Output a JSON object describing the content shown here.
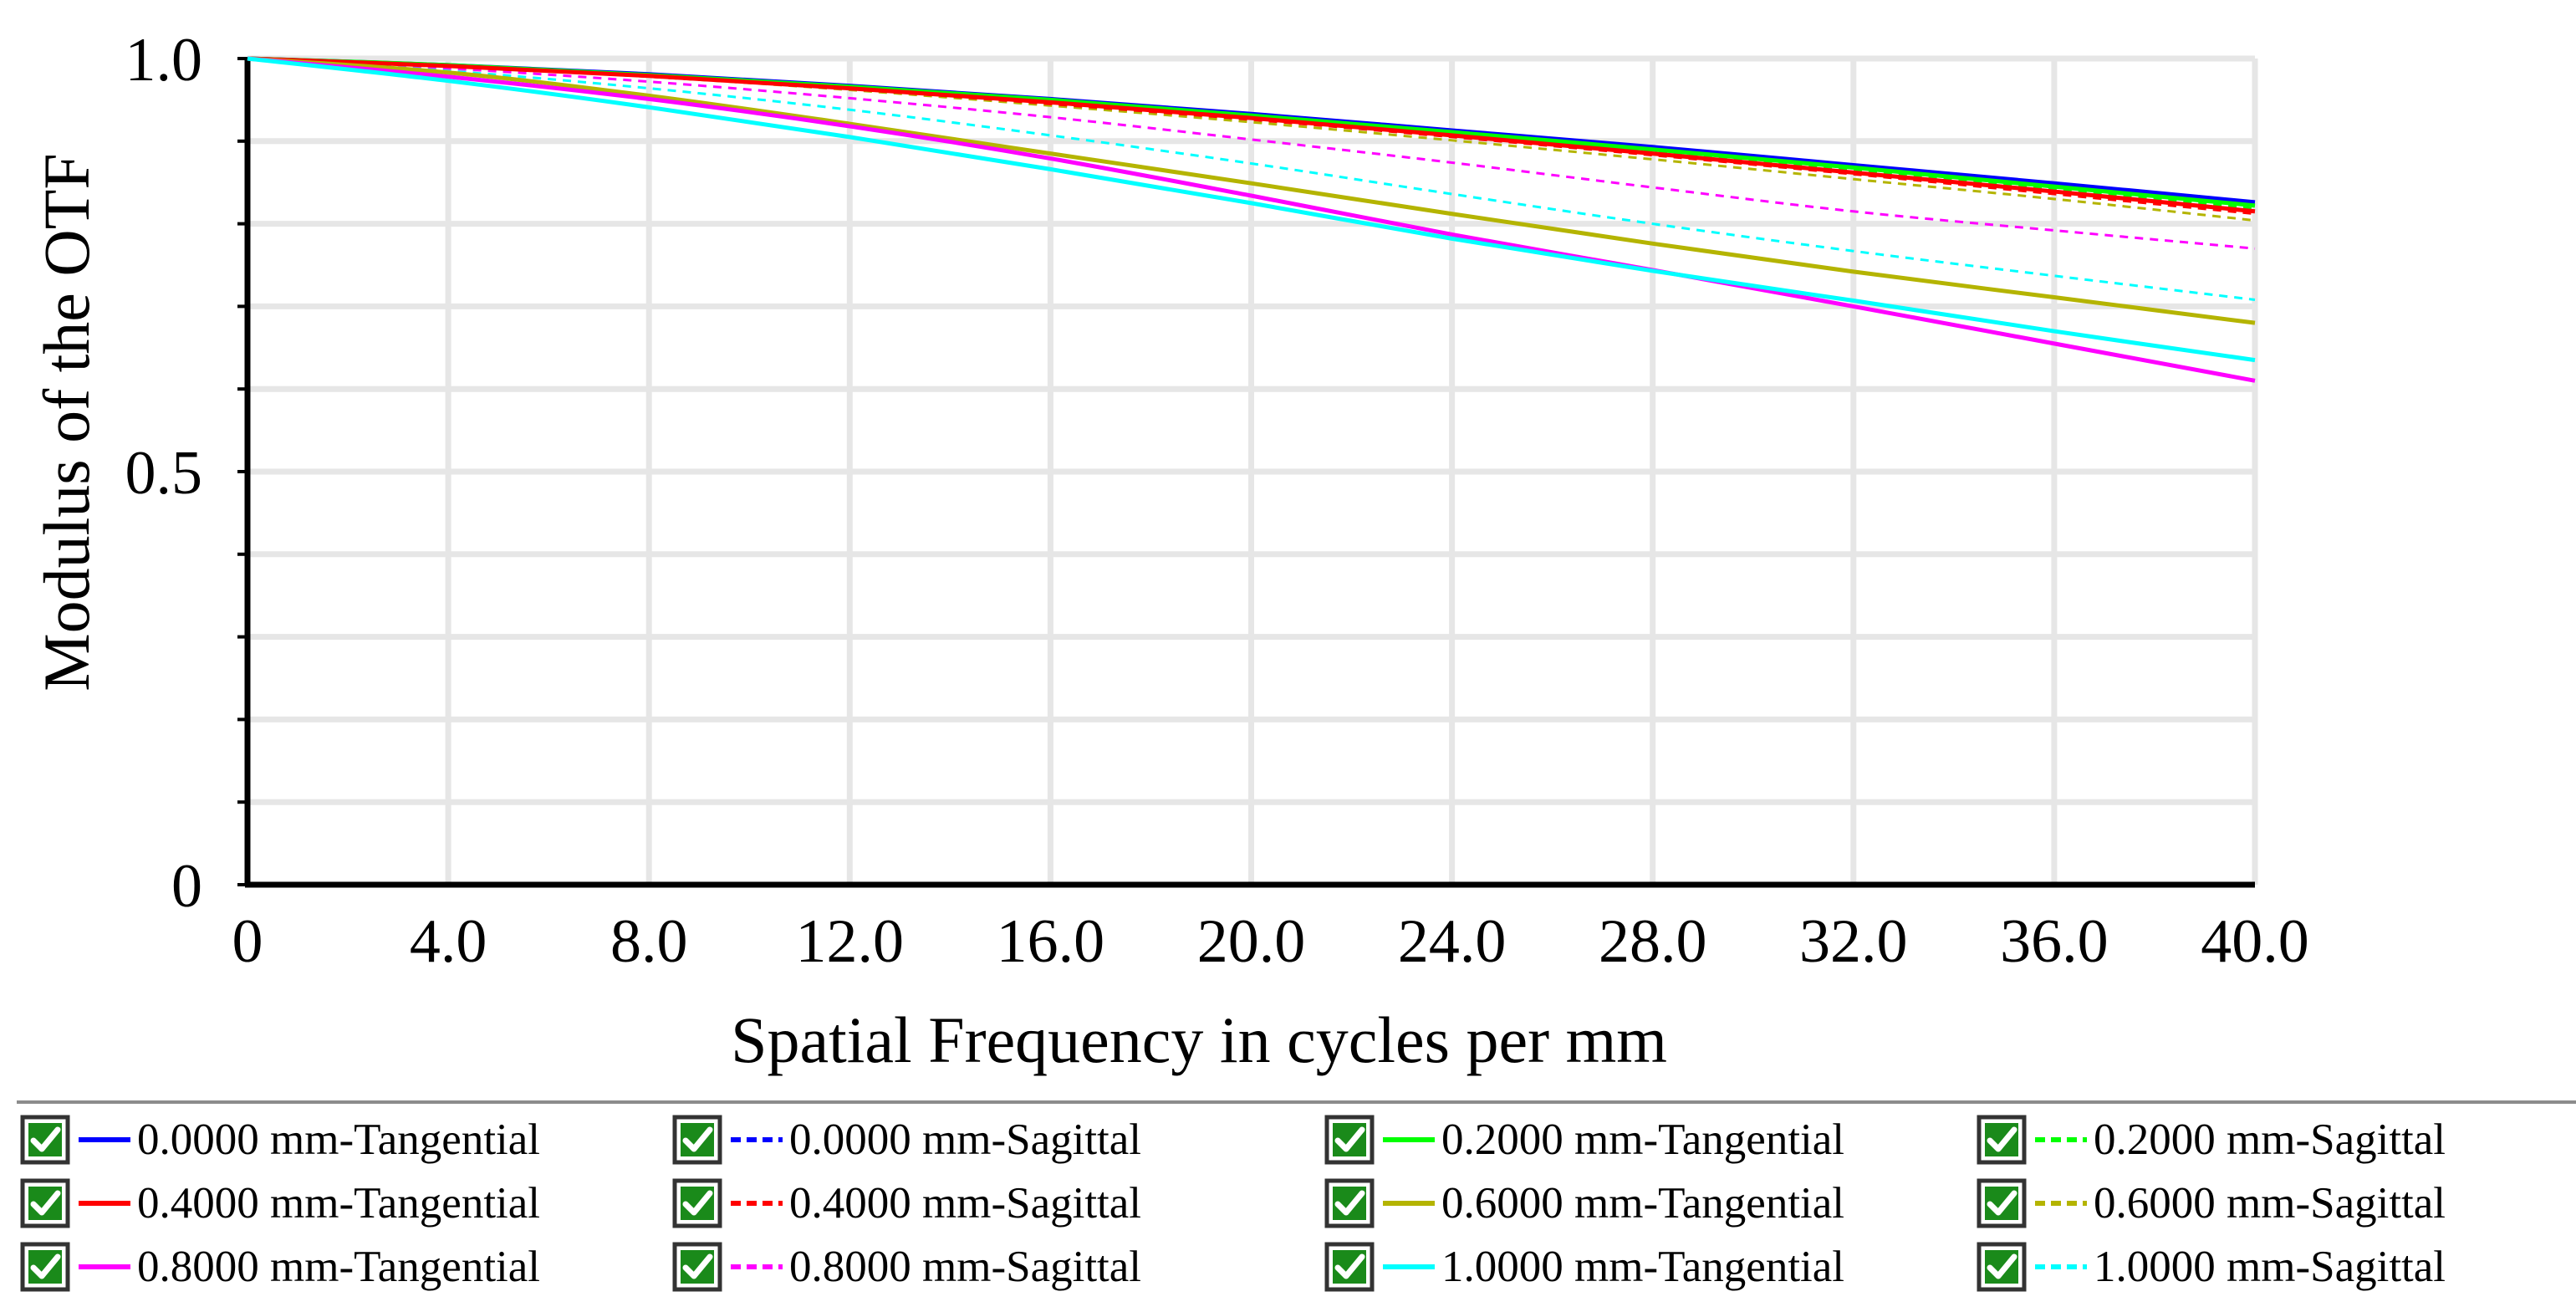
{
  "chart_data": {
    "type": "line",
    "title": "",
    "xlabel": "Spatial Frequency in cycles per mm",
    "ylabel": "Modulus of the OTF",
    "xlim": [
      0,
      40
    ],
    "ylim": [
      0,
      1
    ],
    "grid": true,
    "x_ticks": [
      0,
      4,
      8,
      12,
      16,
      20,
      24,
      28,
      32,
      36,
      40
    ],
    "x_tick_labels": [
      "0",
      "4.0",
      "8.0",
      "12.0",
      "16.0",
      "20.0",
      "24.0",
      "28.0",
      "32.0",
      "36.0",
      "40.0"
    ],
    "y_ticks": [
      0,
      0.5,
      1.0
    ],
    "y_tick_labels": [
      "0",
      "0.5",
      "1.0"
    ],
    "y_minor_grid": [
      0.1,
      0.2,
      0.3,
      0.4,
      0.6,
      0.7,
      0.8,
      0.9
    ],
    "x": [
      0,
      4,
      8,
      12,
      16,
      20,
      24,
      28,
      32,
      36,
      40
    ],
    "series": [
      {
        "name": "0.0000 mm-Tangential",
        "color": "#0000ff",
        "dash": false,
        "values": [
          1.0,
          0.992,
          0.981,
          0.967,
          0.951,
          0.933,
          0.913,
          0.893,
          0.871,
          0.849,
          0.826
        ]
      },
      {
        "name": "0.0000 mm-Sagittal",
        "color": "#0000ff",
        "dash": true,
        "values": [
          1.0,
          0.992,
          0.981,
          0.967,
          0.951,
          0.932,
          0.912,
          0.891,
          0.869,
          0.847,
          0.824
        ]
      },
      {
        "name": "0.2000 mm-Tangential",
        "color": "#00ff00",
        "dash": false,
        "values": [
          1.0,
          0.992,
          0.98,
          0.966,
          0.95,
          0.931,
          0.911,
          0.89,
          0.868,
          0.845,
          0.822
        ]
      },
      {
        "name": "0.2000 mm-Sagittal",
        "color": "#00ff00",
        "dash": true,
        "values": [
          1.0,
          0.992,
          0.979,
          0.965,
          0.948,
          0.929,
          0.909,
          0.887,
          0.865,
          0.842,
          0.818
        ]
      },
      {
        "name": "0.4000 mm-Tangential",
        "color": "#ff0000",
        "dash": false,
        "values": [
          1.0,
          0.991,
          0.979,
          0.964,
          0.947,
          0.928,
          0.907,
          0.885,
          0.862,
          0.839,
          0.815
        ]
      },
      {
        "name": "0.4000 mm-Sagittal",
        "color": "#ff0000",
        "dash": true,
        "values": [
          1.0,
          0.991,
          0.978,
          0.963,
          0.945,
          0.926,
          0.905,
          0.883,
          0.86,
          0.836,
          0.812
        ]
      },
      {
        "name": "0.6000 mm-Tangential",
        "color": "#b4b400",
        "dash": false,
        "values": [
          1.0,
          0.983,
          0.955,
          0.921,
          0.885,
          0.849,
          0.812,
          0.776,
          0.742,
          0.711,
          0.68
        ]
      },
      {
        "name": "0.6000 mm-Sagittal",
        "color": "#b4b400",
        "dash": true,
        "values": [
          1.0,
          0.991,
          0.978,
          0.962,
          0.943,
          0.923,
          0.901,
          0.878,
          0.854,
          0.83,
          0.804
        ]
      },
      {
        "name": "0.8000 mm-Tangential",
        "color": "#ff00ff",
        "dash": false,
        "values": [
          1.0,
          0.978,
          0.951,
          0.918,
          0.879,
          0.834,
          0.787,
          0.744,
          0.7,
          0.655,
          0.61
        ]
      },
      {
        "name": "0.8000 mm-Sagittal",
        "color": "#ff00ff",
        "dash": true,
        "values": [
          1.0,
          0.988,
          0.972,
          0.952,
          0.929,
          0.902,
          0.874,
          0.844,
          0.815,
          0.792,
          0.77
        ]
      },
      {
        "name": "1.0000 mm-Tangential",
        "color": "#00ffff",
        "dash": false,
        "values": [
          1.0,
          0.973,
          0.941,
          0.905,
          0.866,
          0.825,
          0.782,
          0.743,
          0.707,
          0.67,
          0.635
        ]
      },
      {
        "name": "1.0000 mm-Sagittal",
        "color": "#00ffff",
        "dash": true,
        "values": [
          1.0,
          0.985,
          0.964,
          0.938,
          0.907,
          0.873,
          0.836,
          0.8,
          0.767,
          0.737,
          0.708
        ]
      }
    ]
  },
  "legend": {
    "checked": true,
    "order": [
      0,
      1,
      2,
      3,
      4,
      5,
      6,
      7,
      8,
      9,
      10,
      11
    ]
  }
}
